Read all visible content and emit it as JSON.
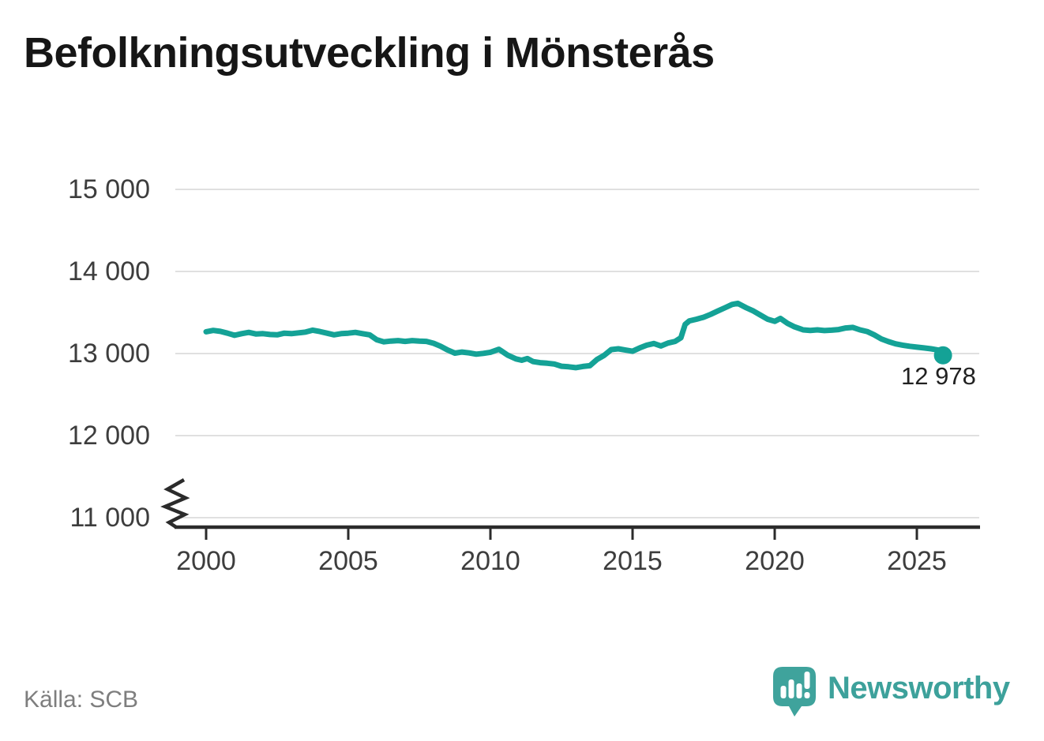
{
  "page": {
    "title": "Befolkningsutveckling i Mönsterås",
    "source": "Källa: SCB",
    "branding": {
      "name": "Newsworthy",
      "color": "#3da19b",
      "icon": "newsworthy-speech-bubble-chart-icon"
    }
  },
  "chart_data": {
    "type": "line",
    "title": "Befolkningsutveckling i Mönsterås",
    "xlabel": "",
    "ylabel": "",
    "grid": true,
    "legend": false,
    "x_axis": {
      "ticks": [
        2000,
        2005,
        2010,
        2015,
        2020,
        2025
      ],
      "tick_labels": [
        "2000",
        "2005",
        "2010",
        "2015",
        "2020",
        "2025"
      ]
    },
    "y_axis": {
      "ticks": [
        15000,
        14000,
        13000,
        12000,
        11000
      ],
      "tick_labels": [
        "15 000",
        "14 000",
        "13 000",
        "12 000",
        "11 000"
      ],
      "range_shown": [
        11000,
        15000
      ],
      "axis_break_at_bottom": true
    },
    "series": [
      {
        "name": "Befolkning",
        "color": "#14a296",
        "points": [
          [
            2000.0,
            13265
          ],
          [
            2000.25,
            13282
          ],
          [
            2000.5,
            13270
          ],
          [
            2000.75,
            13248
          ],
          [
            2001.0,
            13222
          ],
          [
            2001.25,
            13242
          ],
          [
            2001.5,
            13258
          ],
          [
            2001.75,
            13238
          ],
          [
            2002.0,
            13242
          ],
          [
            2002.25,
            13232
          ],
          [
            2002.5,
            13228
          ],
          [
            2002.75,
            13248
          ],
          [
            2003.0,
            13242
          ],
          [
            2003.25,
            13252
          ],
          [
            2003.5,
            13262
          ],
          [
            2003.75,
            13285
          ],
          [
            2004.0,
            13268
          ],
          [
            2004.25,
            13248
          ],
          [
            2004.5,
            13228
          ],
          [
            2004.75,
            13242
          ],
          [
            2005.0,
            13248
          ],
          [
            2005.25,
            13258
          ],
          [
            2005.5,
            13242
          ],
          [
            2005.75,
            13228
          ],
          [
            2006.0,
            13168
          ],
          [
            2006.25,
            13142
          ],
          [
            2006.5,
            13152
          ],
          [
            2006.75,
            13158
          ],
          [
            2007.0,
            13148
          ],
          [
            2007.25,
            13158
          ],
          [
            2007.5,
            13152
          ],
          [
            2007.75,
            13148
          ],
          [
            2008.0,
            13125
          ],
          [
            2008.25,
            13088
          ],
          [
            2008.5,
            13042
          ],
          [
            2008.75,
            13005
          ],
          [
            2009.0,
            13018
          ],
          [
            2009.25,
            13008
          ],
          [
            2009.5,
            12992
          ],
          [
            2009.75,
            13002
          ],
          [
            2010.0,
            13015
          ],
          [
            2010.3,
            13052
          ],
          [
            2010.6,
            12982
          ],
          [
            2010.9,
            12935
          ],
          [
            2011.1,
            12918
          ],
          [
            2011.3,
            12938
          ],
          [
            2011.5,
            12902
          ],
          [
            2011.75,
            12888
          ],
          [
            2012.0,
            12882
          ],
          [
            2012.25,
            12872
          ],
          [
            2012.5,
            12845
          ],
          [
            2012.75,
            12838
          ],
          [
            2013.0,
            12828
          ],
          [
            2013.25,
            12842
          ],
          [
            2013.5,
            12852
          ],
          [
            2013.75,
            12928
          ],
          [
            2014.0,
            12978
          ],
          [
            2014.25,
            13048
          ],
          [
            2014.5,
            13058
          ],
          [
            2014.75,
            13042
          ],
          [
            2015.0,
            13028
          ],
          [
            2015.25,
            13068
          ],
          [
            2015.5,
            13102
          ],
          [
            2015.75,
            13122
          ],
          [
            2016.0,
            13092
          ],
          [
            2016.25,
            13128
          ],
          [
            2016.5,
            13148
          ],
          [
            2016.7,
            13192
          ],
          [
            2016.85,
            13355
          ],
          [
            2017.0,
            13398
          ],
          [
            2017.25,
            13418
          ],
          [
            2017.5,
            13442
          ],
          [
            2017.75,
            13478
          ],
          [
            2018.0,
            13518
          ],
          [
            2018.25,
            13558
          ],
          [
            2018.5,
            13598
          ],
          [
            2018.7,
            13612
          ],
          [
            2019.0,
            13558
          ],
          [
            2019.25,
            13518
          ],
          [
            2019.5,
            13468
          ],
          [
            2019.75,
            13418
          ],
          [
            2020.0,
            13392
          ],
          [
            2020.2,
            13428
          ],
          [
            2020.45,
            13368
          ],
          [
            2020.7,
            13325
          ],
          [
            2021.0,
            13288
          ],
          [
            2021.25,
            13282
          ],
          [
            2021.5,
            13288
          ],
          [
            2021.75,
            13280
          ],
          [
            2022.0,
            13285
          ],
          [
            2022.25,
            13292
          ],
          [
            2022.5,
            13312
          ],
          [
            2022.75,
            13318
          ],
          [
            2023.0,
            13288
          ],
          [
            2023.25,
            13268
          ],
          [
            2023.5,
            13228
          ],
          [
            2023.75,
            13178
          ],
          [
            2024.0,
            13145
          ],
          [
            2024.25,
            13118
          ],
          [
            2024.5,
            13102
          ],
          [
            2024.75,
            13088
          ],
          [
            2025.0,
            13078
          ],
          [
            2025.25,
            13068
          ],
          [
            2025.5,
            13058
          ],
          [
            2025.75,
            13042
          ],
          [
            2025.92,
            12978
          ]
        ]
      }
    ],
    "end_annotation": {
      "label": "12 978",
      "value": 12978,
      "x": 2025.92
    },
    "colors": {
      "line": "#14a296",
      "grid": "#e0e0e0",
      "axis": "#2b2b2b",
      "title": "#161616",
      "tick_label": "#3d3d3d",
      "source": "#7e7e7e",
      "annotation": "#212121"
    }
  }
}
